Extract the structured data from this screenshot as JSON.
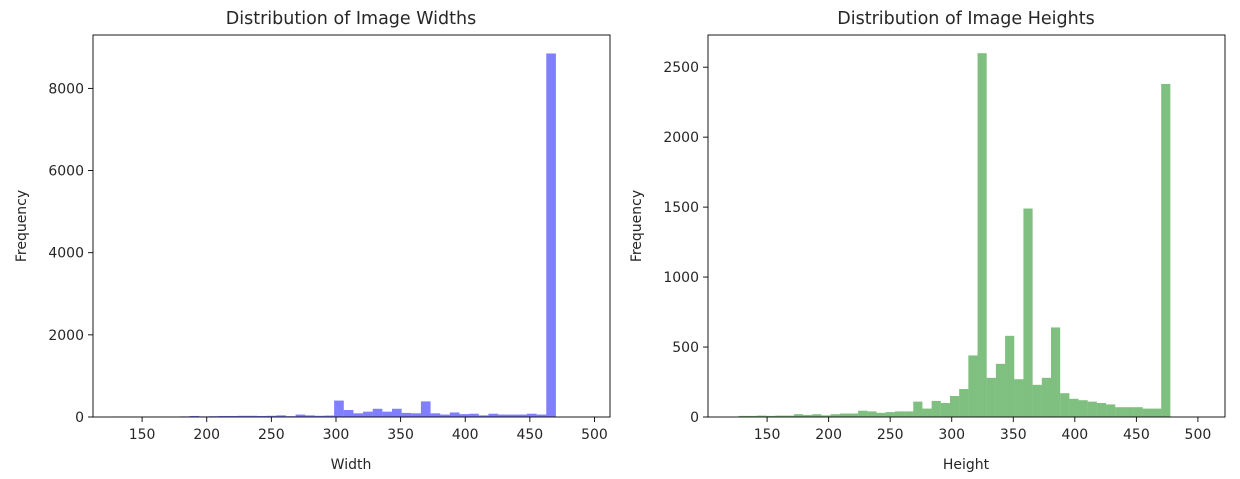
{
  "chart_data": [
    {
      "type": "bar",
      "title": "Distribution of Image Widths",
      "xlabel": "Width",
      "ylabel": "Frequency",
      "color": "#0000ff",
      "alpha": 0.5,
      "xlim": [
        112,
        512
      ],
      "ylim": [
        0,
        9300
      ],
      "xticks": [
        150,
        200,
        250,
        300,
        350,
        400,
        450,
        500
      ],
      "yticks": [
        0,
        2000,
        4000,
        6000,
        8000
      ],
      "bin_start": 127,
      "bin_width": 7.46,
      "values": [
        10,
        8,
        5,
        5,
        10,
        12,
        5,
        15,
        25,
        15,
        20,
        25,
        25,
        30,
        30,
        25,
        30,
        40,
        20,
        60,
        40,
        30,
        35,
        400,
        170,
        90,
        130,
        200,
        130,
        200,
        100,
        90,
        380,
        90,
        60,
        110,
        70,
        80,
        40,
        80,
        60,
        60,
        60,
        80,
        60,
        8850
      ]
    },
    {
      "type": "bar",
      "title": "Distribution of Image Heights",
      "xlabel": "Height",
      "ylabel": "Frequency",
      "color": "#008000",
      "alpha": 0.5,
      "xlim": [
        102,
        522
      ],
      "ylim": [
        0,
        2730
      ],
      "xticks": [
        150,
        200,
        250,
        300,
        350,
        400,
        450,
        500
      ],
      "yticks": [
        0,
        500,
        1000,
        1500,
        2000,
        2500
      ],
      "bin_start": 127,
      "bin_width": 7.46,
      "values": [
        8,
        8,
        10,
        8,
        10,
        10,
        20,
        15,
        20,
        12,
        20,
        25,
        25,
        45,
        40,
        30,
        35,
        40,
        40,
        110,
        60,
        115,
        100,
        150,
        200,
        440,
        2600,
        280,
        380,
        580,
        270,
        1490,
        230,
        280,
        640,
        170,
        130,
        120,
        110,
        100,
        90,
        70,
        70,
        70,
        60,
        60,
        2380
      ]
    }
  ]
}
